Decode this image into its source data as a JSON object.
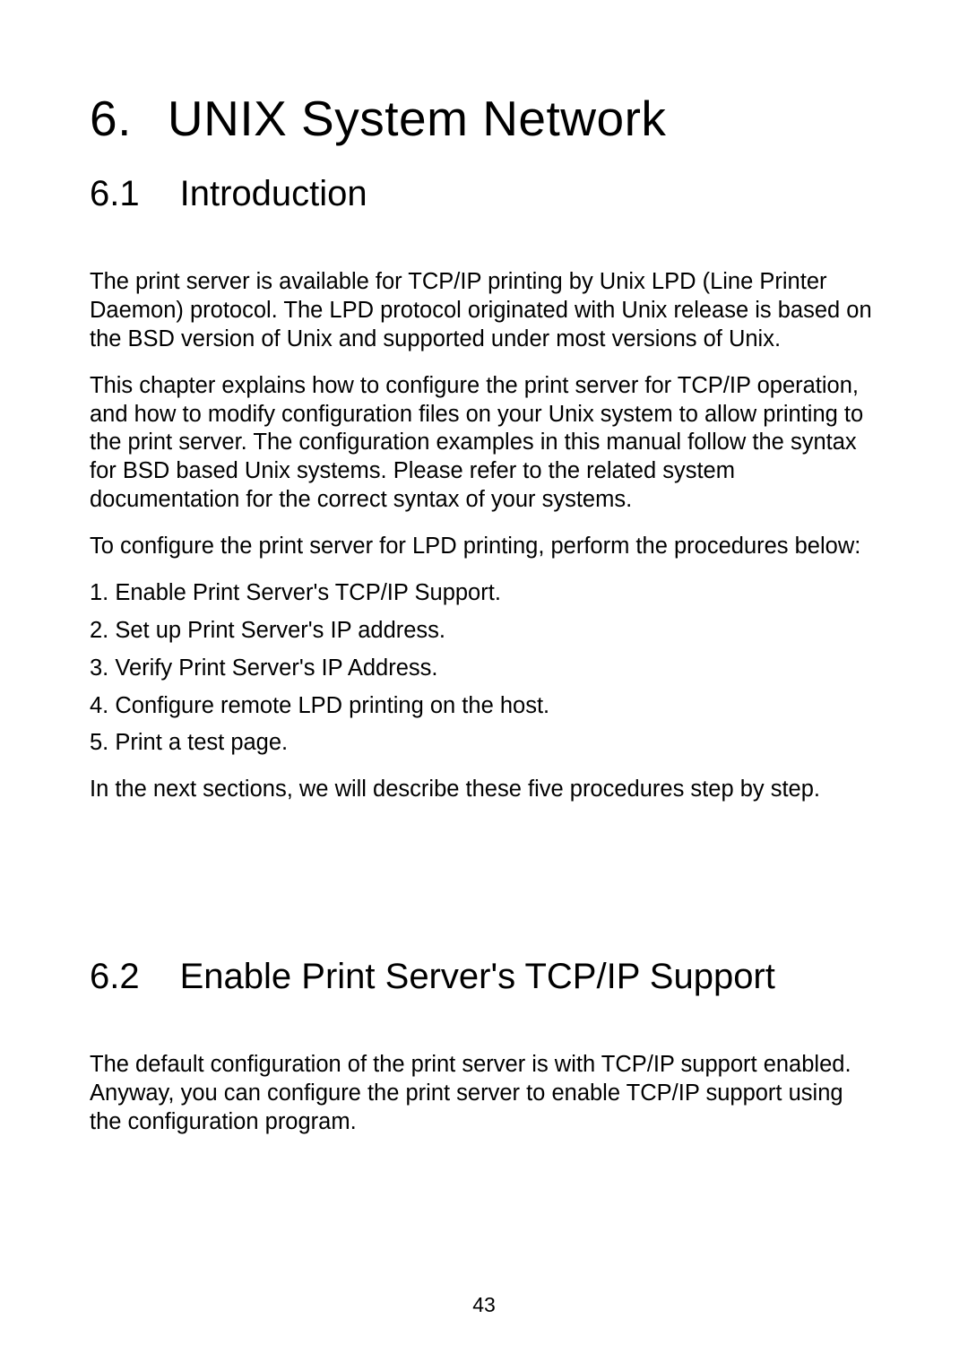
{
  "chapter": {
    "number": "6.",
    "title": "UNIX System Network"
  },
  "section1": {
    "number": "6.1",
    "title": "Introduction",
    "para1": "The print server is available for TCP/IP printing by Unix LPD (Line Printer Daemon) protocol. The LPD protocol originated with Unix release is based on the BSD version of Unix and supported under most versions of Unix.",
    "para2": "This chapter explains how to configure the print server for TCP/IP operation, and how to modify configuration files on your Unix system to allow printing to the print server. The configuration examples in this manual follow the syntax for BSD based Unix systems. Please refer to the related system documentation for the correct syntax of your systems.",
    "para3": "To configure the print server for LPD printing, perform the procedures below:",
    "list": [
      "1.  Enable Print Server's TCP/IP Support.",
      "2.  Set up Print Server's IP address.",
      "3.  Verify Print Server's IP Address.",
      "4.  Configure remote LPD printing on the host.",
      "5.  Print a test page."
    ],
    "para4": "In the next sections, we will describe these five procedures step by step."
  },
  "section2": {
    "number": "6.2",
    "title": "Enable Print Server's TCP/IP Support",
    "para1": "The default configuration of the print server is with TCP/IP support enabled. Anyway, you can configure the print server to enable TCP/IP support using the configuration program."
  },
  "pageNumber": "43"
}
